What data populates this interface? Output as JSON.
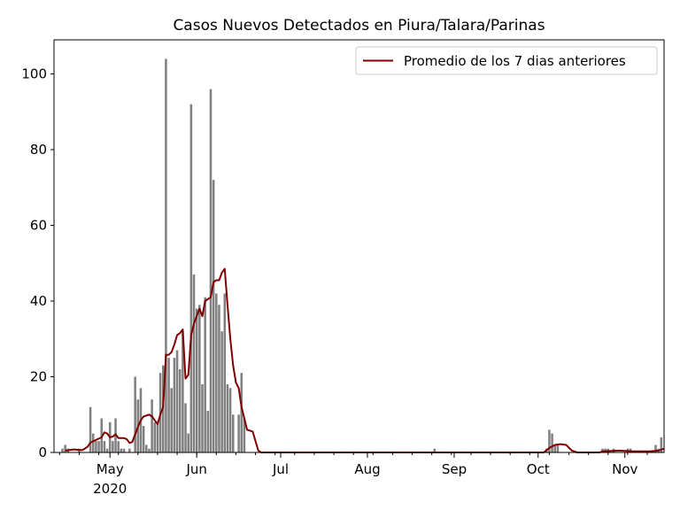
{
  "chart_data": {
    "type": "bar",
    "title": "Casos Nuevos Detectados en Piura/Talara/Parinas",
    "xlabel": "",
    "ylabel": "",
    "x_start": "2020-04-11",
    "x_end": "2020-11-15",
    "ylim": [
      0,
      109
    ],
    "yticks": [
      0,
      20,
      40,
      60,
      80,
      100
    ],
    "xticks": [
      {
        "date": "2020-05-01",
        "label": "May",
        "sublabel": "2020"
      },
      {
        "date": "2020-06-01",
        "label": "Jun",
        "sublabel": ""
      },
      {
        "date": "2020-07-01",
        "label": "Jul",
        "sublabel": ""
      },
      {
        "date": "2020-08-01",
        "label": "Aug",
        "sublabel": ""
      },
      {
        "date": "2020-09-01",
        "label": "Sep",
        "sublabel": ""
      },
      {
        "date": "2020-10-01",
        "label": "Oct",
        "sublabel": ""
      },
      {
        "date": "2020-11-01",
        "label": "Nov",
        "sublabel": ""
      }
    ],
    "grid": false,
    "legend_position": "top-right",
    "bar_color": "#808080",
    "line_color": "#800000",
    "bars": [
      {
        "date": "2020-04-14",
        "value": 1
      },
      {
        "date": "2020-04-15",
        "value": 2
      },
      {
        "date": "2020-04-16",
        "value": 1
      },
      {
        "date": "2020-04-20",
        "value": 1
      },
      {
        "date": "2020-04-24",
        "value": 12
      },
      {
        "date": "2020-04-25",
        "value": 5
      },
      {
        "date": "2020-04-26",
        "value": 3
      },
      {
        "date": "2020-04-27",
        "value": 3
      },
      {
        "date": "2020-04-28",
        "value": 9
      },
      {
        "date": "2020-04-29",
        "value": 3
      },
      {
        "date": "2020-04-30",
        "value": 1
      },
      {
        "date": "2020-05-01",
        "value": 8
      },
      {
        "date": "2020-05-02",
        "value": 3
      },
      {
        "date": "2020-05-03",
        "value": 9
      },
      {
        "date": "2020-05-04",
        "value": 3
      },
      {
        "date": "2020-05-05",
        "value": 1
      },
      {
        "date": "2020-05-06",
        "value": 1
      },
      {
        "date": "2020-05-08",
        "value": 1
      },
      {
        "date": "2020-05-10",
        "value": 20
      },
      {
        "date": "2020-05-11",
        "value": 14
      },
      {
        "date": "2020-05-12",
        "value": 17
      },
      {
        "date": "2020-05-13",
        "value": 7
      },
      {
        "date": "2020-05-14",
        "value": 2
      },
      {
        "date": "2020-05-15",
        "value": 1
      },
      {
        "date": "2020-05-16",
        "value": 14
      },
      {
        "date": "2020-05-17",
        "value": 8
      },
      {
        "date": "2020-05-18",
        "value": 8
      },
      {
        "date": "2020-05-19",
        "value": 21
      },
      {
        "date": "2020-05-20",
        "value": 23
      },
      {
        "date": "2020-05-21",
        "value": 104
      },
      {
        "date": "2020-05-22",
        "value": 25
      },
      {
        "date": "2020-05-23",
        "value": 17
      },
      {
        "date": "2020-05-24",
        "value": 25
      },
      {
        "date": "2020-05-25",
        "value": 27
      },
      {
        "date": "2020-05-26",
        "value": 22
      },
      {
        "date": "2020-05-27",
        "value": 32
      },
      {
        "date": "2020-05-28",
        "value": 13
      },
      {
        "date": "2020-05-29",
        "value": 5
      },
      {
        "date": "2020-05-30",
        "value": 92
      },
      {
        "date": "2020-05-31",
        "value": 47
      },
      {
        "date": "2020-06-01",
        "value": 38
      },
      {
        "date": "2020-06-02",
        "value": 39
      },
      {
        "date": "2020-06-03",
        "value": 18
      },
      {
        "date": "2020-06-04",
        "value": 41
      },
      {
        "date": "2020-06-05",
        "value": 11
      },
      {
        "date": "2020-06-06",
        "value": 96
      },
      {
        "date": "2020-06-07",
        "value": 72
      },
      {
        "date": "2020-06-08",
        "value": 42
      },
      {
        "date": "2020-06-09",
        "value": 39
      },
      {
        "date": "2020-06-10",
        "value": 32
      },
      {
        "date": "2020-06-11",
        "value": 42
      },
      {
        "date": "2020-06-12",
        "value": 18
      },
      {
        "date": "2020-06-13",
        "value": 17
      },
      {
        "date": "2020-06-14",
        "value": 10
      },
      {
        "date": "2020-06-16",
        "value": 10
      },
      {
        "date": "2020-06-17",
        "value": 21
      },
      {
        "date": "2020-06-18",
        "value": 9
      },
      {
        "date": "2020-08-25",
        "value": 1
      },
      {
        "date": "2020-10-04",
        "value": 1
      },
      {
        "date": "2020-10-05",
        "value": 6
      },
      {
        "date": "2020-10-06",
        "value": 5
      },
      {
        "date": "2020-10-07",
        "value": 2
      },
      {
        "date": "2020-10-08",
        "value": 2
      },
      {
        "date": "2020-10-24",
        "value": 1
      },
      {
        "date": "2020-10-25",
        "value": 1
      },
      {
        "date": "2020-10-26",
        "value": 1
      },
      {
        "date": "2020-10-28",
        "value": 1
      },
      {
        "date": "2020-11-02",
        "value": 1
      },
      {
        "date": "2020-11-03",
        "value": 1
      },
      {
        "date": "2020-11-12",
        "value": 2
      },
      {
        "date": "2020-11-13",
        "value": 1
      },
      {
        "date": "2020-11-14",
        "value": 4
      }
    ],
    "series": [
      {
        "name": "Promedio de los 7 dias anteriores",
        "points": [
          {
            "date": "2020-04-15",
            "value": 0.5
          },
          {
            "date": "2020-04-18",
            "value": 0.8
          },
          {
            "date": "2020-04-21",
            "value": 0.6
          },
          {
            "date": "2020-04-22",
            "value": 1.0
          },
          {
            "date": "2020-04-23",
            "value": 1.5
          },
          {
            "date": "2020-04-24",
            "value": 2.6
          },
          {
            "date": "2020-04-26",
            "value": 3.3
          },
          {
            "date": "2020-04-28",
            "value": 4.0
          },
          {
            "date": "2020-04-29",
            "value": 5.3
          },
          {
            "date": "2020-04-30",
            "value": 5.0
          },
          {
            "date": "2020-05-01",
            "value": 4.0
          },
          {
            "date": "2020-05-02",
            "value": 4.2
          },
          {
            "date": "2020-05-03",
            "value": 4.8
          },
          {
            "date": "2020-05-04",
            "value": 3.8
          },
          {
            "date": "2020-05-06",
            "value": 3.8
          },
          {
            "date": "2020-05-07",
            "value": 3.5
          },
          {
            "date": "2020-05-08",
            "value": 2.5
          },
          {
            "date": "2020-05-09",
            "value": 2.8
          },
          {
            "date": "2020-05-10",
            "value": 4.8
          },
          {
            "date": "2020-05-11",
            "value": 6.8
          },
          {
            "date": "2020-05-12",
            "value": 8.5
          },
          {
            "date": "2020-05-13",
            "value": 9.5
          },
          {
            "date": "2020-05-15",
            "value": 10.0
          },
          {
            "date": "2020-05-16",
            "value": 9.5
          },
          {
            "date": "2020-05-17",
            "value": 8.5
          },
          {
            "date": "2020-05-18",
            "value": 7.5
          },
          {
            "date": "2020-05-19",
            "value": 10.0
          },
          {
            "date": "2020-05-20",
            "value": 12.0
          },
          {
            "date": "2020-05-21",
            "value": 25.8
          },
          {
            "date": "2020-05-22",
            "value": 25.8
          },
          {
            "date": "2020-05-23",
            "value": 26.5
          },
          {
            "date": "2020-05-24",
            "value": 28.5
          },
          {
            "date": "2020-05-25",
            "value": 31.0
          },
          {
            "date": "2020-05-26",
            "value": 31.5
          },
          {
            "date": "2020-05-27",
            "value": 32.5
          },
          {
            "date": "2020-05-28",
            "value": 19.5
          },
          {
            "date": "2020-05-29",
            "value": 20.5
          },
          {
            "date": "2020-05-30",
            "value": 31.0
          },
          {
            "date": "2020-05-31",
            "value": 34.0
          },
          {
            "date": "2020-06-01",
            "value": 36.0
          },
          {
            "date": "2020-06-02",
            "value": 38.0
          },
          {
            "date": "2020-06-03",
            "value": 36.0
          },
          {
            "date": "2020-06-04",
            "value": 40.0
          },
          {
            "date": "2020-06-06",
            "value": 41.0
          },
          {
            "date": "2020-06-07",
            "value": 45.0
          },
          {
            "date": "2020-06-08",
            "value": 45.5
          },
          {
            "date": "2020-06-09",
            "value": 45.5
          },
          {
            "date": "2020-06-10",
            "value": 47.5
          },
          {
            "date": "2020-06-11",
            "value": 48.5
          },
          {
            "date": "2020-06-12",
            "value": 39.0
          },
          {
            "date": "2020-06-13",
            "value": 30.0
          },
          {
            "date": "2020-06-14",
            "value": 23.0
          },
          {
            "date": "2020-06-15",
            "value": 18.5
          },
          {
            "date": "2020-06-16",
            "value": 17.0
          },
          {
            "date": "2020-06-17",
            "value": 12.0
          },
          {
            "date": "2020-06-18",
            "value": 9.0
          },
          {
            "date": "2020-06-19",
            "value": 6.0
          },
          {
            "date": "2020-06-21",
            "value": 5.5
          },
          {
            "date": "2020-06-22",
            "value": 3.0
          },
          {
            "date": "2020-06-23",
            "value": 0.5
          },
          {
            "date": "2020-06-24",
            "value": 0
          },
          {
            "date": "2020-10-03",
            "value": 0
          },
          {
            "date": "2020-10-05",
            "value": 1.2
          },
          {
            "date": "2020-10-07",
            "value": 2.0
          },
          {
            "date": "2020-10-09",
            "value": 2.2
          },
          {
            "date": "2020-10-11",
            "value": 2.0
          },
          {
            "date": "2020-10-13",
            "value": 0.5
          },
          {
            "date": "2020-10-15",
            "value": 0
          },
          {
            "date": "2020-10-23",
            "value": 0
          },
          {
            "date": "2020-10-24",
            "value": 0.3
          },
          {
            "date": "2020-10-30",
            "value": 0.5
          },
          {
            "date": "2020-11-04",
            "value": 0.3
          },
          {
            "date": "2020-11-10",
            "value": 0.3
          },
          {
            "date": "2020-11-13",
            "value": 0.5
          },
          {
            "date": "2020-11-15",
            "value": 1.0
          }
        ]
      }
    ]
  }
}
